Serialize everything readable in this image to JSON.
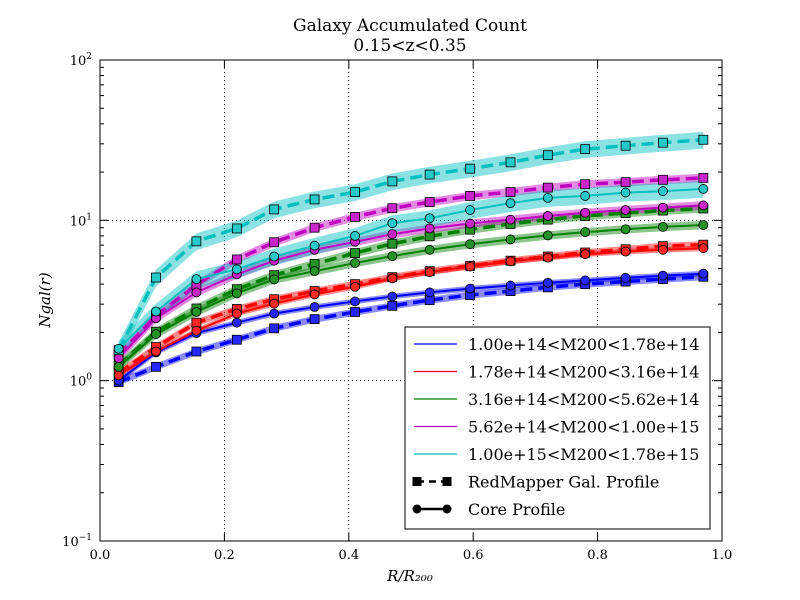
{
  "chart_data": {
    "type": "line",
    "title": "Galaxy Accumulated Count",
    "subtitle": "0.15<z<0.35",
    "xlabel": "R/R₂₀₀",
    "ylabel": "Ngal(r)",
    "xlim": [
      0.0,
      1.0
    ],
    "ylim": [
      0.1,
      100
    ],
    "yscale": "log",
    "grid": true,
    "legend_position": "lower-right",
    "x_ticks": [
      "0.0",
      "0.2",
      "0.4",
      "0.6",
      "0.8",
      "1.0"
    ],
    "y_ticks": [
      {
        "base": "10",
        "exp": "−1",
        "value": 0.1
      },
      {
        "base": "10",
        "exp": "0",
        "value": 1
      },
      {
        "base": "10",
        "exp": "1",
        "value": 10
      },
      {
        "base": "10",
        "exp": "2",
        "value": 100
      }
    ],
    "x": [
      0.03,
      0.09,
      0.155,
      0.22,
      0.28,
      0.345,
      0.41,
      0.47,
      0.53,
      0.595,
      0.66,
      0.72,
      0.78,
      0.845,
      0.905,
      0.97
    ],
    "mass_bins": [
      {
        "label": "1.00e+14<M200<1.78e+14",
        "color": "#0000ff"
      },
      {
        "label": "1.78e+14<M200<3.16e+14",
        "color": "#ff0000"
      },
      {
        "label": "3.16e+14<M200<5.62e+14",
        "color": "#008000"
      },
      {
        "label": "5.62e+14<M200<1.00e+15",
        "color": "#bf00bf"
      },
      {
        "label": "1.00e+15<M200<1.78e+15",
        "color": "#00bfbf"
      }
    ],
    "style_legend": [
      {
        "label": "RedMapper Gal.  Profile",
        "style": "dashed",
        "marker": "square"
      },
      {
        "label": "Core Profile",
        "style": "solid",
        "marker": "circle"
      }
    ],
    "series": [
      {
        "bin": 0,
        "style": "dashed",
        "marker": "square",
        "band": 0.05,
        "values": [
          0.98,
          1.22,
          1.52,
          1.8,
          2.12,
          2.42,
          2.68,
          2.93,
          3.18,
          3.42,
          3.62,
          3.82,
          4.0,
          4.15,
          4.3,
          4.45
        ]
      },
      {
        "bin": 0,
        "style": "solid",
        "marker": "circle",
        "band": 0.04,
        "values": [
          1.0,
          1.5,
          1.98,
          2.3,
          2.62,
          2.88,
          3.12,
          3.35,
          3.55,
          3.75,
          3.92,
          4.08,
          4.22,
          4.38,
          4.52,
          4.65
        ]
      },
      {
        "bin": 1,
        "style": "dashed",
        "marker": "square",
        "band": 0.05,
        "values": [
          1.12,
          1.62,
          2.3,
          2.8,
          3.22,
          3.62,
          4.0,
          4.42,
          4.82,
          5.2,
          5.6,
          5.95,
          6.3,
          6.6,
          6.9,
          7.05
        ]
      },
      {
        "bin": 1,
        "style": "solid",
        "marker": "circle",
        "band": 0.04,
        "values": [
          1.08,
          1.52,
          2.05,
          2.62,
          3.02,
          3.45,
          3.85,
          4.35,
          4.75,
          5.15,
          5.55,
          5.85,
          6.15,
          6.38,
          6.55,
          6.7
        ]
      },
      {
        "bin": 2,
        "style": "dashed",
        "marker": "square",
        "band": 0.06,
        "values": [
          1.25,
          2.02,
          2.82,
          3.72,
          4.55,
          5.35,
          6.25,
          7.15,
          7.95,
          8.75,
          9.5,
          10.1,
          10.65,
          11.1,
          11.5,
          11.85
        ]
      },
      {
        "bin": 2,
        "style": "solid",
        "marker": "circle",
        "band": 0.06,
        "values": [
          1.22,
          1.95,
          2.68,
          3.5,
          4.28,
          4.82,
          5.42,
          5.98,
          6.55,
          7.1,
          7.6,
          8.05,
          8.45,
          8.8,
          9.1,
          9.35
        ]
      },
      {
        "bin": 3,
        "style": "dashed",
        "marker": "square",
        "band": 0.06,
        "values": [
          1.45,
          2.55,
          3.95,
          5.7,
          7.3,
          9.0,
          10.5,
          11.9,
          13.0,
          14.2,
          15.0,
          16.0,
          16.8,
          17.3,
          17.9,
          18.4
        ]
      },
      {
        "bin": 3,
        "style": "solid",
        "marker": "circle",
        "band": 0.06,
        "values": [
          1.38,
          2.45,
          3.55,
          4.6,
          5.6,
          6.55,
          7.35,
          8.2,
          8.9,
          9.55,
          10.1,
          10.65,
          11.15,
          11.6,
          12.0,
          12.4
        ]
      },
      {
        "bin": 4,
        "style": "dashed",
        "marker": "square",
        "band": 0.12,
        "values": [
          1.55,
          4.4,
          7.4,
          8.9,
          11.7,
          13.5,
          15.0,
          17.5,
          19.3,
          21.0,
          23.0,
          25.5,
          27.8,
          29.2,
          30.5,
          31.8
        ]
      },
      {
        "bin": 4,
        "style": "solid",
        "marker": "circle",
        "band": 0.12,
        "values": [
          1.58,
          2.7,
          4.3,
          4.95,
          5.95,
          6.95,
          8.0,
          9.6,
          10.3,
          11.6,
          12.8,
          13.8,
          14.2,
          14.9,
          15.2,
          15.7
        ]
      }
    ]
  }
}
